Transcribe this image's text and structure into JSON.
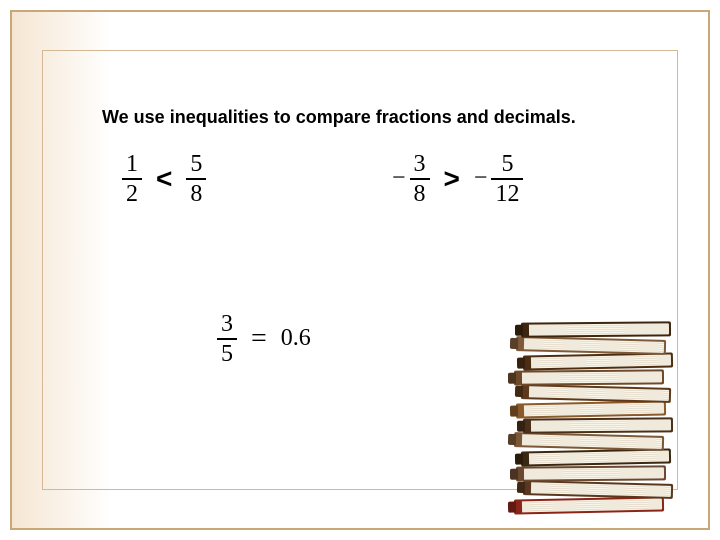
{
  "title": "We use inequalities to compare fractions and decimals.",
  "ineq1": {
    "left": {
      "num": "1",
      "den": "2",
      "neg": false
    },
    "op": "<",
    "right": {
      "num": "5",
      "den": "8",
      "neg": false
    }
  },
  "ineq2": {
    "left": {
      "num": "3",
      "den": "8",
      "neg": true
    },
    "op": ">",
    "right": {
      "num": "5",
      "den": "12",
      "neg": true
    }
  },
  "ineq3": {
    "left": {
      "num": "3",
      "den": "5",
      "neg": false
    },
    "op": "=",
    "right_decimal": "0.6"
  },
  "style": {
    "frame_border_color": "#c9a878",
    "inner_border_color": "#d4b896",
    "gradient_start": "#f5e6d3",
    "gradient_end": "#ffffff",
    "title_fontsize": 18,
    "fraction_fontsize": 24,
    "op_fontsize": 28,
    "text_color": "#000000",
    "font_title": "Arial",
    "font_math": "Times New Roman"
  },
  "books": {
    "count": 12,
    "covers": [
      "#8b2518",
      "#5a3820",
      "#6b4830",
      "#3a2810",
      "#7a5838",
      "#4a3018",
      "#8b5a2b",
      "#5e3a1a",
      "#6e4a2a",
      "#4e2e12",
      "#7e5a3a",
      "#3e260e"
    ]
  },
  "neg_glyph": "−"
}
